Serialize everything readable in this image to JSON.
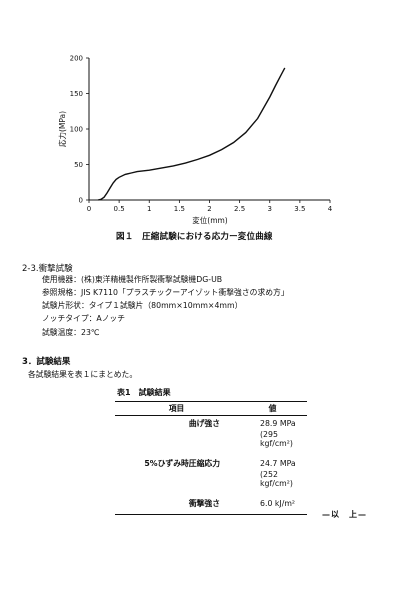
{
  "chart_data": {
    "type": "line",
    "title": "",
    "xlabel": "変位(mm)",
    "ylabel": "応力(MPa)",
    "xlim": [
      0,
      4
    ],
    "ylim": [
      0,
      200
    ],
    "x_ticks": [
      "0",
      "0.5",
      "1",
      "1.5",
      "2",
      "2.5",
      "3",
      "3.5",
      "4"
    ],
    "y_ticks": [
      "0",
      "50",
      "100",
      "150",
      "200"
    ],
    "grid": false,
    "series": [
      {
        "x": [
          0.15,
          0.2,
          0.25,
          0.3,
          0.35,
          0.4,
          0.45,
          0.5,
          0.6,
          0.7,
          0.8,
          1.0,
          1.2,
          1.4,
          1.6,
          1.8,
          2.0,
          2.2,
          2.4,
          2.6,
          2.8,
          3.0,
          3.1,
          3.2,
          3.25
        ],
        "y": [
          0,
          1,
          4,
          10,
          17,
          24,
          29,
          32,
          36,
          38,
          40,
          42,
          45,
          48,
          52,
          57,
          63,
          71,
          81,
          95,
          115,
          145,
          162,
          178,
          186
        ]
      }
    ]
  },
  "figure_caption": "図１　圧縮試験における応力ー変位曲線",
  "section_impact": {
    "heading": "2-3.衝撃試験",
    "lines": [
      "使用機器：(株)東洋精機製作所製衝撃試験機DG-UB",
      "参照規格：JIS K7110「プラスチックーアイゾット衝撃強さの求め方」",
      "試験片形状：タイプ１試験片（80mm×10mm×4mm）",
      "ノッチタイプ：Aノッチ",
      "試験温度：23℃"
    ]
  },
  "section_results": {
    "heading": "3．試験結果",
    "intro": "各試験結果を表１にまとめた。"
  },
  "table": {
    "title": "表1　試験結果",
    "headers": [
      "項目",
      "値"
    ],
    "rows": [
      {
        "item": "曲げ強さ",
        "value": "28.9 MPa",
        "sub": "(295 kgf/cm²)"
      },
      {
        "item": "5%ひずみ時圧縮応力",
        "value": "24.7 MPa",
        "sub": "(252 kgf/cm²)"
      },
      {
        "item": "衝撃強さ",
        "value": "6.0 kJ/m²"
      }
    ]
  },
  "end_mark": "—以　上—"
}
